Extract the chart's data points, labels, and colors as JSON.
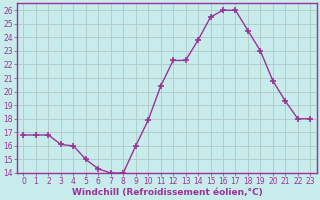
{
  "x": [
    0,
    1,
    2,
    3,
    4,
    5,
    6,
    7,
    8,
    9,
    10,
    11,
    12,
    13,
    14,
    15,
    16,
    17,
    18,
    19,
    20,
    21,
    22,
    23
  ],
  "y": [
    16.8,
    16.8,
    16.8,
    16.1,
    16.0,
    15.0,
    14.3,
    14.0,
    14.0,
    16.0,
    17.9,
    20.4,
    22.3,
    22.3,
    23.8,
    25.5,
    26.0,
    26.0,
    24.5,
    23.0,
    20.8,
    19.3,
    18.0,
    18.0
  ],
  "line_color": "#993399",
  "marker": "+",
  "marker_size": 4,
  "marker_lw": 1.2,
  "bg_color": "#c8ecec",
  "grid_color": "#b0c8c8",
  "spine_color": "#993399",
  "xlabel": "Windchill (Refroidissement éolien,°C)",
  "xlabel_color": "#993399",
  "tick_color": "#993399",
  "xlim": [
    -0.5,
    23.5
  ],
  "ylim": [
    14,
    26.5
  ],
  "yticks": [
    14,
    15,
    16,
    17,
    18,
    19,
    20,
    21,
    22,
    23,
    24,
    25,
    26
  ],
  "xtick_labels": [
    "0",
    "1",
    "2",
    "3",
    "4",
    "5",
    "6",
    "7",
    "8",
    "9",
    "10",
    "11",
    "12",
    "13",
    "14",
    "15",
    "16",
    "17",
    "18",
    "19",
    "20",
    "21",
    "22",
    "23"
  ],
  "font_name": "DejaVu Sans",
  "tick_fontsize": 5.5,
  "xlabel_fontsize": 6.5,
  "line_width": 1.0
}
